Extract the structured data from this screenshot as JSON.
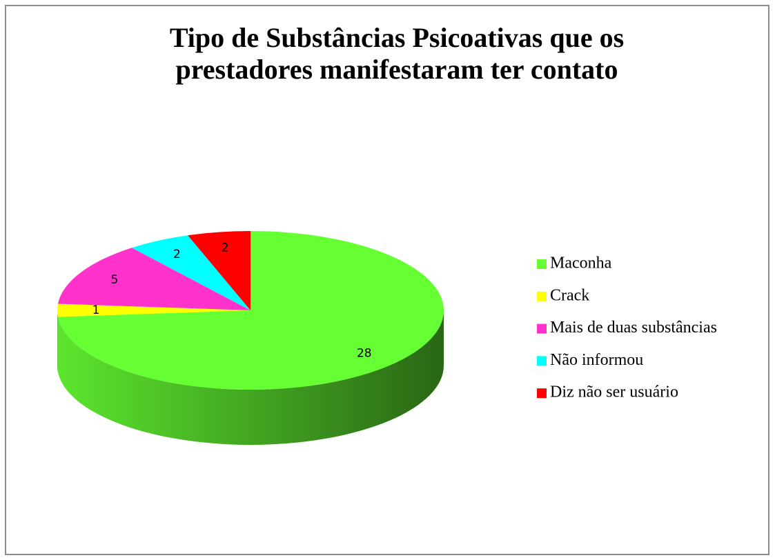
{
  "chart_data": {
    "type": "pie",
    "title": "Tipo de Substâncias Psicoativas que os prestadores manifestaram ter contato",
    "categories": [
      "Maconha",
      "Crack",
      "Mais de duas substâncias",
      "Não informou",
      "Diz não ser usuário"
    ],
    "values": [
      28,
      1,
      5,
      2,
      2
    ],
    "colors": [
      "#66ff33",
      "#ffff00",
      "#ff33cc",
      "#00ffff",
      "#ff0000"
    ],
    "legend": "right"
  }
}
